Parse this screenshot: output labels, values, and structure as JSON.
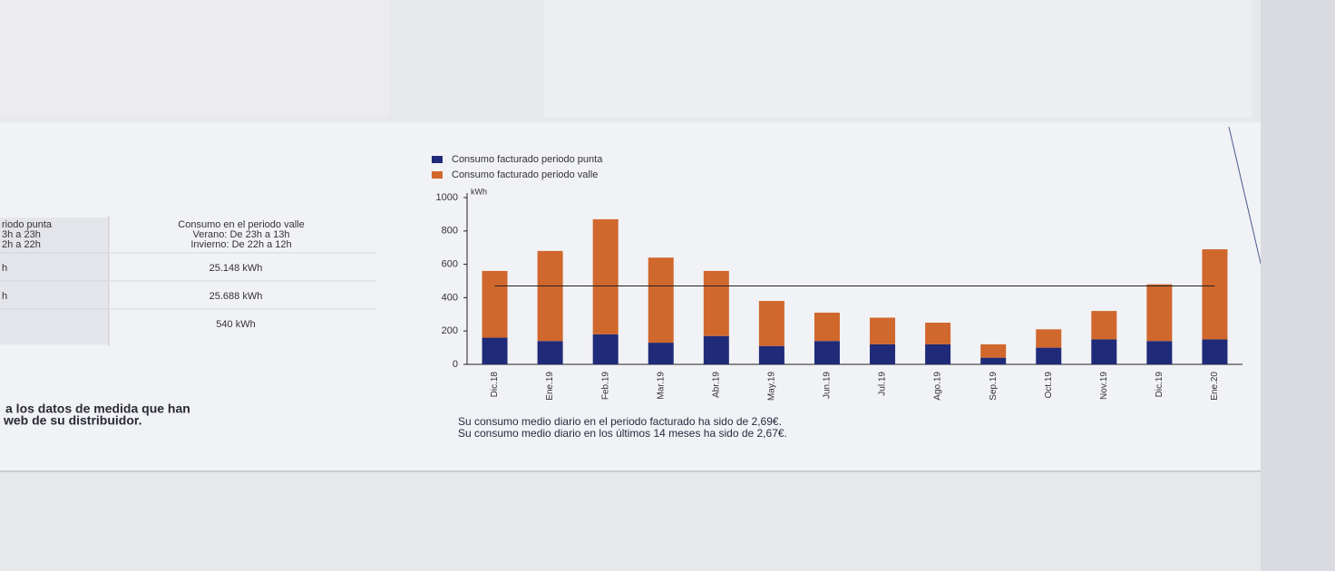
{
  "table": {
    "header": [
      [
        "riodo punta",
        "3h a 23h",
        "2h a 22h"
      ],
      [
        "Consumo en el periodo valle",
        "Verano: De 23h a 13h",
        "Invierno: De 22h a 12h"
      ]
    ],
    "rows": [
      {
        "left": "h",
        "right": "25.148 kWh"
      },
      {
        "left": "h",
        "right": "25.688 kWh"
      },
      {
        "right": "540 kWh"
      }
    ]
  },
  "notes": [
    "a los datos de medida que han",
    "web de su distribuidor."
  ],
  "chart_data": {
    "type": "bar",
    "stacked": true,
    "y_unit": "kWh",
    "categories": [
      "Dic.18",
      "Ene.19",
      "Feb.19",
      "Mar.19",
      "Abr.19",
      "May.19",
      "Jun.19",
      "Jul.19",
      "Ago.19",
      "Sep.19",
      "Oct.19",
      "Nov.19",
      "Dic.19",
      "Ene.20"
    ],
    "series": [
      {
        "name": "Consumo facturado periodo punta",
        "color": "#1f2a78",
        "values": [
          160,
          140,
          180,
          130,
          170,
          110,
          140,
          120,
          120,
          40,
          100,
          150,
          140,
          150
        ]
      },
      {
        "name": "Consumo facturado periodo valle",
        "color": "#d0672c",
        "values": [
          400,
          540,
          690,
          510,
          390,
          270,
          170,
          160,
          130,
          80,
          110,
          170,
          340,
          540
        ]
      }
    ],
    "mean": 470,
    "ylim": [
      0,
      1000
    ],
    "yticks": [
      0,
      200,
      400,
      600,
      800,
      1000
    ],
    "captions": [
      "Su consumo medio diario en el periodo facturado ha sido de 2,69€.",
      "Su consumo medio diario en los últimos 14 meses ha sido de 2,67€."
    ]
  }
}
